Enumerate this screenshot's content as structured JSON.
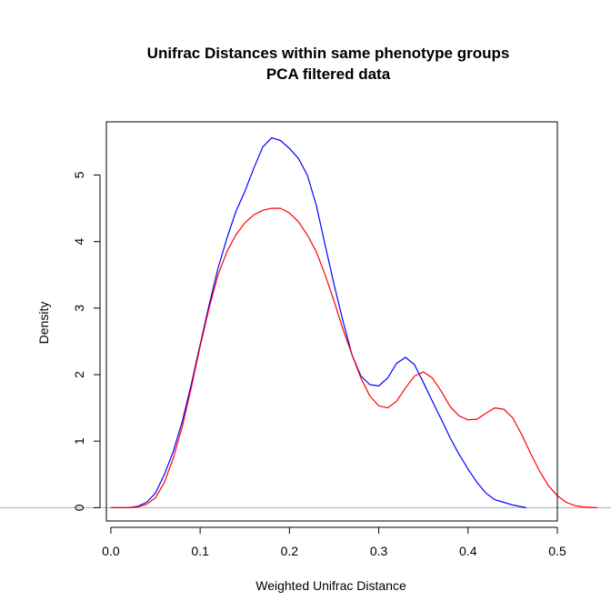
{
  "chart_data": {
    "type": "line",
    "title": "Unifrac Distances within same phenotype groups",
    "subtitle": "PCA filtered data",
    "xlabel": "Weighted Unifrac Distance",
    "ylabel": "Density",
    "xlim": [
      -0.005,
      0.5
    ],
    "ylim": [
      -0.2,
      5.8
    ],
    "x_ticks": [
      0.0,
      0.1,
      0.2,
      0.3,
      0.4,
      0.5
    ],
    "x_tick_labels": [
      "0.0",
      "0.1",
      "0.2",
      "0.3",
      "0.4",
      "0.5"
    ],
    "y_ticks": [
      0,
      1,
      2,
      3,
      4,
      5
    ],
    "y_tick_labels": [
      "0",
      "1",
      "2",
      "3",
      "4",
      "5"
    ],
    "baseline": {
      "y": 0,
      "color": "#aaaaaa"
    },
    "grid": false,
    "legend": "none",
    "series": [
      {
        "color": "#0000ff",
        "points": [
          [
            0.0,
            0.0
          ],
          [
            0.02,
            0.0
          ],
          [
            0.03,
            0.02
          ],
          [
            0.04,
            0.08
          ],
          [
            0.05,
            0.22
          ],
          [
            0.06,
            0.5
          ],
          [
            0.07,
            0.85
          ],
          [
            0.08,
            1.3
          ],
          [
            0.09,
            1.85
          ],
          [
            0.1,
            2.45
          ],
          [
            0.11,
            3.05
          ],
          [
            0.12,
            3.6
          ],
          [
            0.13,
            4.05
          ],
          [
            0.14,
            4.45
          ],
          [
            0.15,
            4.75
          ],
          [
            0.16,
            5.1
          ],
          [
            0.17,
            5.42
          ],
          [
            0.18,
            5.56
          ],
          [
            0.19,
            5.52
          ],
          [
            0.2,
            5.4
          ],
          [
            0.21,
            5.25
          ],
          [
            0.22,
            5.0
          ],
          [
            0.23,
            4.55
          ],
          [
            0.24,
            3.95
          ],
          [
            0.25,
            3.35
          ],
          [
            0.26,
            2.8
          ],
          [
            0.27,
            2.3
          ],
          [
            0.28,
            1.98
          ],
          [
            0.29,
            1.85
          ],
          [
            0.3,
            1.83
          ],
          [
            0.31,
            1.95
          ],
          [
            0.32,
            2.17
          ],
          [
            0.33,
            2.26
          ],
          [
            0.34,
            2.15
          ],
          [
            0.35,
            1.88
          ],
          [
            0.36,
            1.6
          ],
          [
            0.37,
            1.33
          ],
          [
            0.38,
            1.05
          ],
          [
            0.39,
            0.8
          ],
          [
            0.4,
            0.58
          ],
          [
            0.41,
            0.38
          ],
          [
            0.42,
            0.22
          ],
          [
            0.43,
            0.12
          ],
          [
            0.44,
            0.08
          ],
          [
            0.45,
            0.04
          ],
          [
            0.465,
            0.0
          ]
        ]
      },
      {
        "color": "#ff0000",
        "points": [
          [
            0.0,
            0.0
          ],
          [
            0.02,
            0.0
          ],
          [
            0.03,
            0.01
          ],
          [
            0.04,
            0.05
          ],
          [
            0.05,
            0.15
          ],
          [
            0.06,
            0.38
          ],
          [
            0.07,
            0.75
          ],
          [
            0.08,
            1.22
          ],
          [
            0.09,
            1.8
          ],
          [
            0.1,
            2.42
          ],
          [
            0.11,
            3.0
          ],
          [
            0.12,
            3.5
          ],
          [
            0.13,
            3.85
          ],
          [
            0.14,
            4.1
          ],
          [
            0.15,
            4.28
          ],
          [
            0.16,
            4.4
          ],
          [
            0.17,
            4.47
          ],
          [
            0.18,
            4.5
          ],
          [
            0.19,
            4.5
          ],
          [
            0.2,
            4.43
          ],
          [
            0.21,
            4.3
          ],
          [
            0.22,
            4.1
          ],
          [
            0.23,
            3.85
          ],
          [
            0.24,
            3.5
          ],
          [
            0.25,
            3.1
          ],
          [
            0.26,
            2.68
          ],
          [
            0.27,
            2.3
          ],
          [
            0.28,
            1.95
          ],
          [
            0.29,
            1.68
          ],
          [
            0.3,
            1.53
          ],
          [
            0.31,
            1.5
          ],
          [
            0.32,
            1.6
          ],
          [
            0.33,
            1.8
          ],
          [
            0.34,
            1.98
          ],
          [
            0.35,
            2.04
          ],
          [
            0.36,
            1.95
          ],
          [
            0.37,
            1.75
          ],
          [
            0.38,
            1.52
          ],
          [
            0.39,
            1.38
          ],
          [
            0.4,
            1.32
          ],
          [
            0.41,
            1.33
          ],
          [
            0.42,
            1.42
          ],
          [
            0.43,
            1.5
          ],
          [
            0.44,
            1.48
          ],
          [
            0.45,
            1.35
          ],
          [
            0.46,
            1.1
          ],
          [
            0.47,
            0.82
          ],
          [
            0.48,
            0.55
          ],
          [
            0.49,
            0.33
          ],
          [
            0.5,
            0.18
          ],
          [
            0.51,
            0.08
          ],
          [
            0.52,
            0.03
          ],
          [
            0.53,
            0.01
          ],
          [
            0.545,
            0.0
          ]
        ]
      }
    ]
  }
}
